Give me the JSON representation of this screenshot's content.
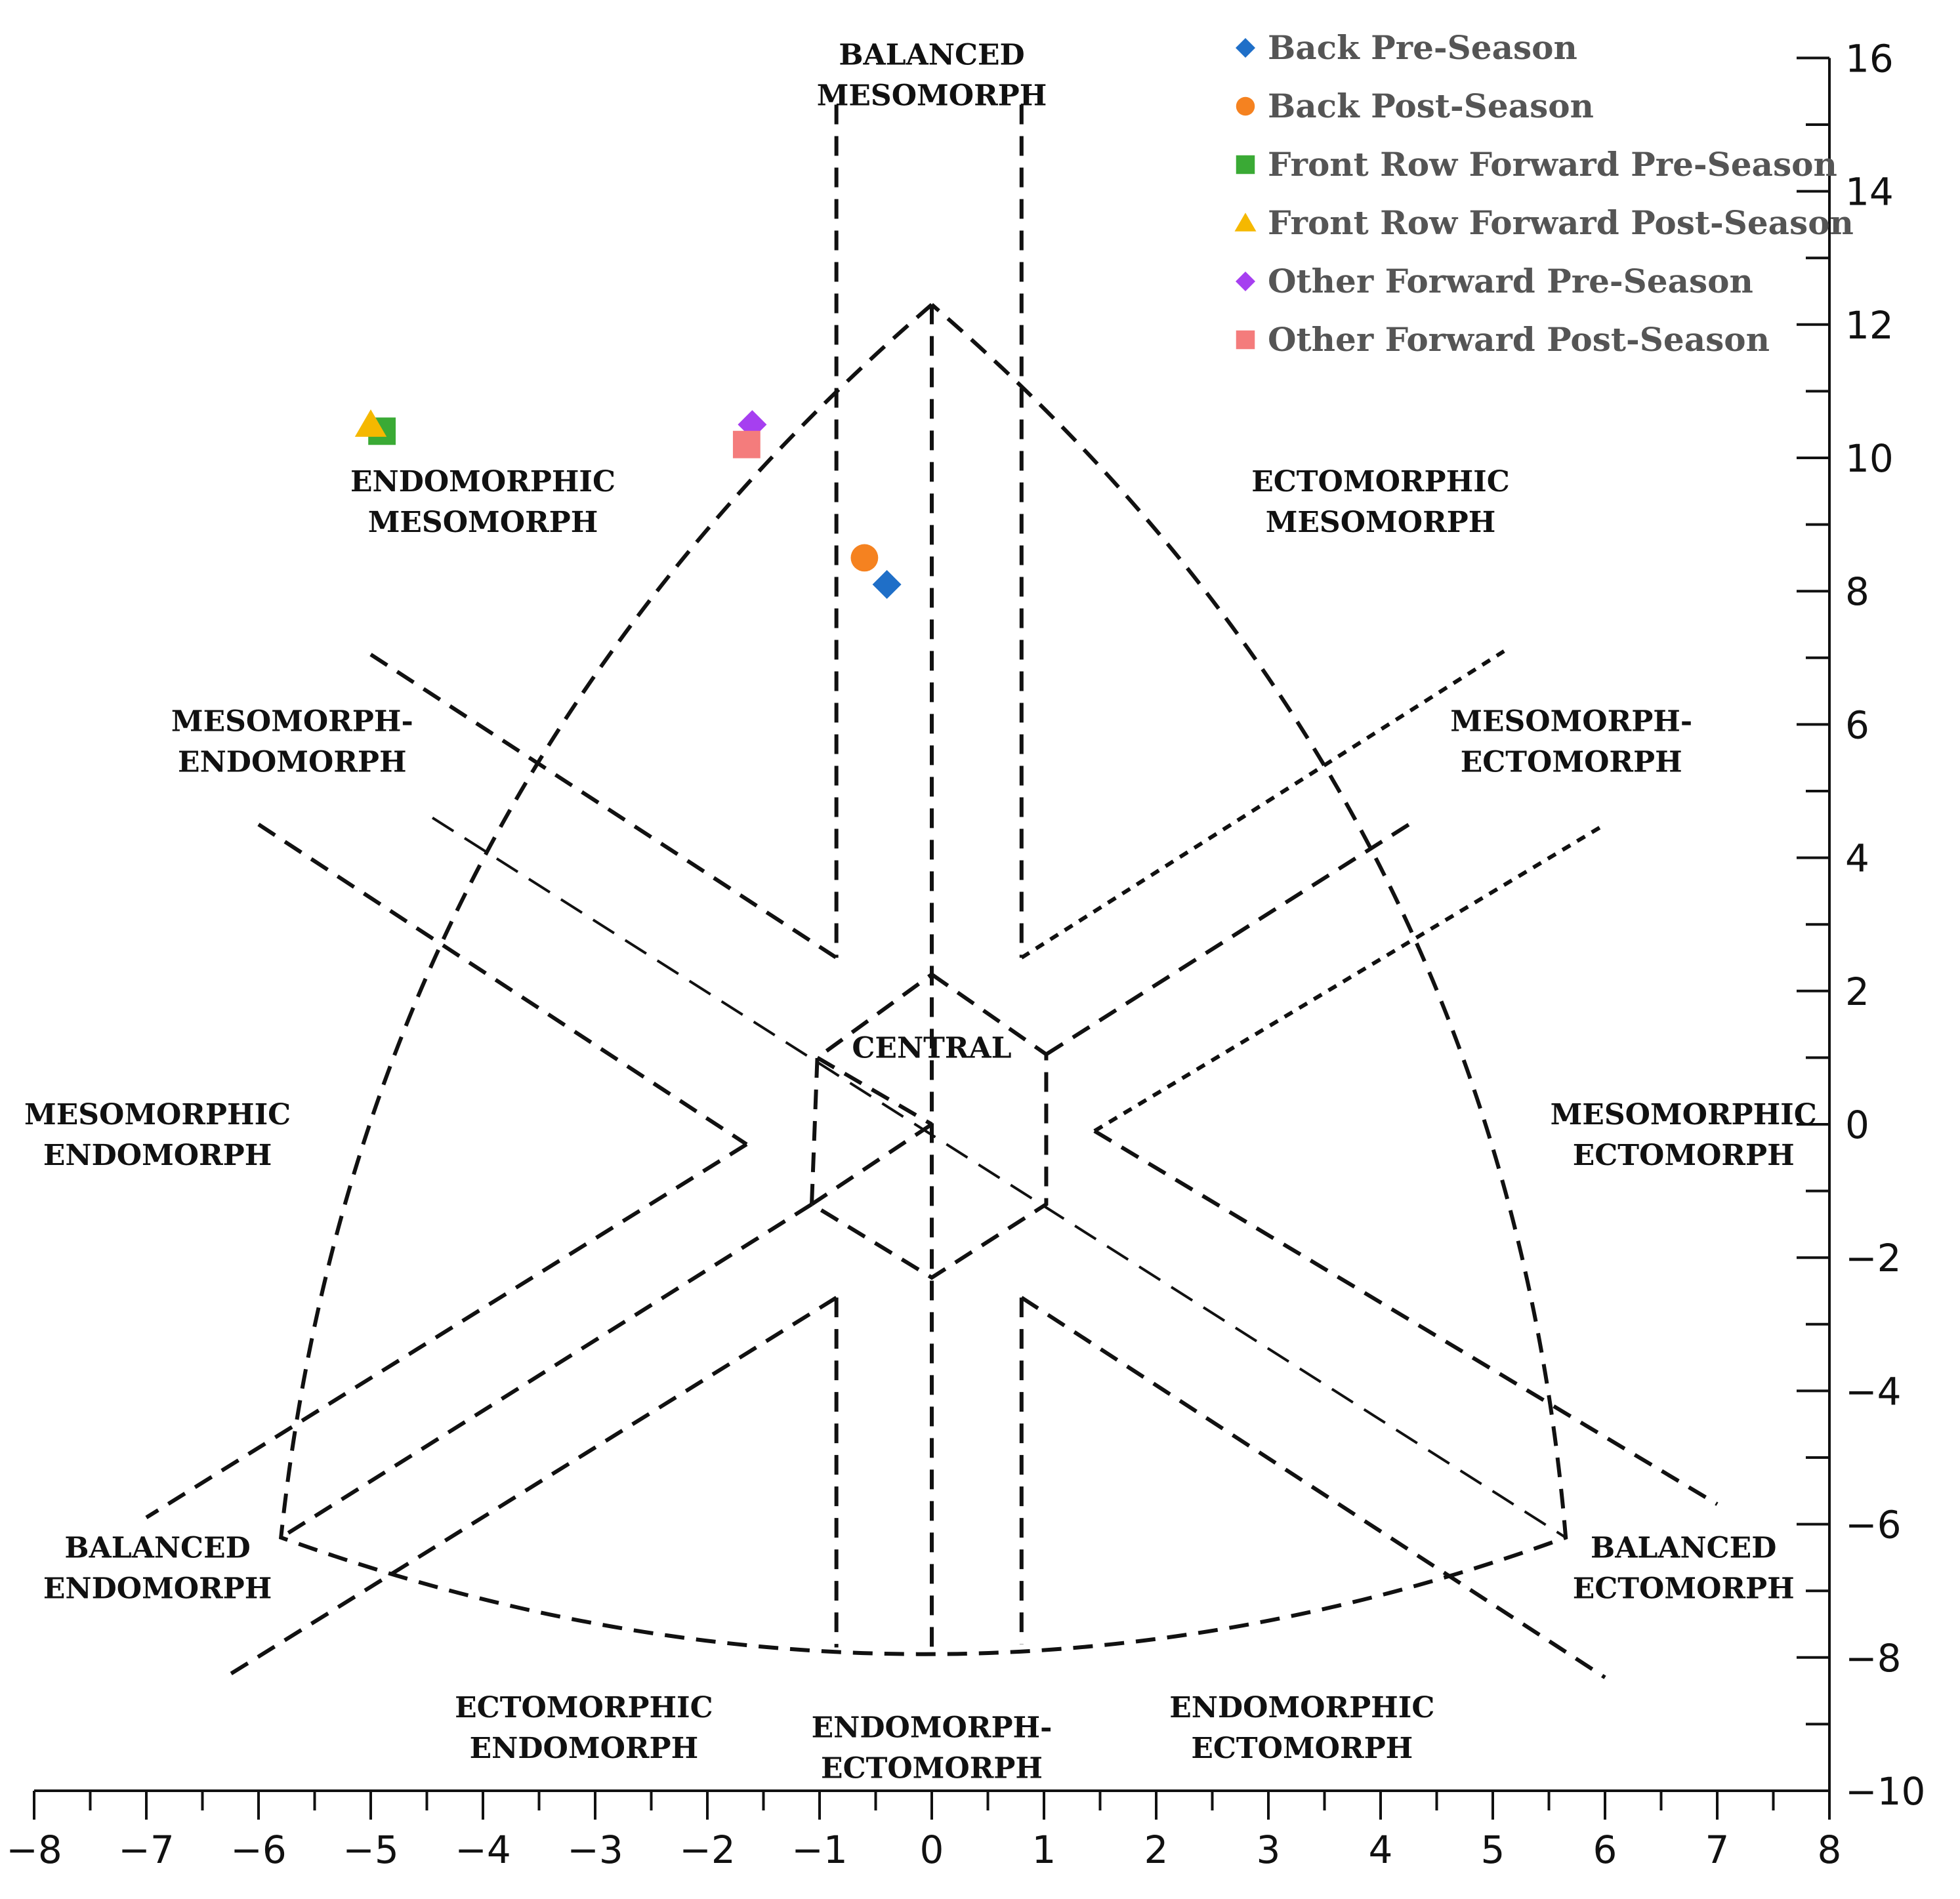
{
  "chart_data": {
    "type": "scatter",
    "title": "",
    "xlabel": "",
    "ylabel": "",
    "xlim": [
      -8,
      8
    ],
    "ylim": [
      -10,
      16
    ],
    "x_ticks": [
      -8,
      -7,
      -6,
      -5,
      -4,
      -3,
      -2,
      -1,
      0,
      1,
      2,
      3,
      4,
      5,
      6,
      7,
      8
    ],
    "y_ticks": [
      -10,
      -8,
      -6,
      -4,
      -2,
      0,
      2,
      4,
      6,
      8,
      10,
      12,
      14,
      16
    ],
    "x_tick_labels": [
      "−8",
      "−7",
      "−6",
      "−5",
      "−4",
      "−3",
      "−2",
      "−1",
      "0",
      "1",
      "2",
      "3",
      "4",
      "5",
      "6",
      "7",
      "8"
    ],
    "y_tick_labels": [
      "−10",
      "−8",
      "−6",
      "−4",
      "−2",
      "0",
      "2",
      "4",
      "6",
      "8",
      "10",
      "12",
      "14",
      "16"
    ],
    "grid": false,
    "legend_position": "top-right",
    "series": [
      {
        "name": "Back Pre-Season",
        "marker": "diamond",
        "color": "#1f6fc8",
        "x": [
          -0.4
        ],
        "y": [
          8.1
        ]
      },
      {
        "name": "Back Post-Season",
        "marker": "circle",
        "color": "#f58220",
        "x": [
          -0.6
        ],
        "y": [
          8.5
        ]
      },
      {
        "name": "Front Row Forward Pre-Season",
        "marker": "square",
        "color": "#3aaa35",
        "x": [
          -4.9
        ],
        "y": [
          10.4
        ]
      },
      {
        "name": "Front Row Forward Post-Season",
        "marker": "triangle",
        "color": "#f5b800",
        "x": [
          -5.0
        ],
        "y": [
          10.5
        ]
      },
      {
        "name": "Other Forward Pre-Season",
        "marker": "diamond",
        "color": "#a63ff0",
        "x": [
          -1.6
        ],
        "y": [
          10.5
        ]
      },
      {
        "name": "Other Forward Post-Season",
        "marker": "square",
        "color": "#f47c7c",
        "x": [
          -1.65
        ],
        "y": [
          10.2
        ]
      }
    ],
    "zone_labels": [
      {
        "lines": [
          "BALANCED",
          "MESOMORPH"
        ],
        "x": 0,
        "y": 15.9
      },
      {
        "lines": [
          "ENDOMORPHIC",
          "MESOMORPH"
        ],
        "x": -4,
        "y": 9.5
      },
      {
        "lines": [
          "ECTOMORPHIC",
          "MESOMORPH"
        ],
        "x": 4,
        "y": 9.5
      },
      {
        "lines": [
          "MESOMORPH-",
          "ENDOMORPH"
        ],
        "x": -5.7,
        "y": 5.9
      },
      {
        "lines": [
          "MESOMORPH-",
          "ECTOMORPH"
        ],
        "x": 5.7,
        "y": 5.9
      },
      {
        "lines": [
          "CENTRAL"
        ],
        "x": 0,
        "y": 1.0
      },
      {
        "lines": [
          "MESOMORPHIC",
          "ENDOMORPH"
        ],
        "x": -6.9,
        "y": 0.0
      },
      {
        "lines": [
          "MESOMORPHIC",
          "ECTOMORPH"
        ],
        "x": 6.7,
        "y": 0.0
      },
      {
        "lines": [
          "BALANCED",
          "ENDOMORPH"
        ],
        "x": -6.9,
        "y": -6.5
      },
      {
        "lines": [
          "BALANCED",
          "ECTOMORPH"
        ],
        "x": 6.7,
        "y": -6.5
      },
      {
        "lines": [
          "ECTOMORPHIC",
          "ENDOMORPH"
        ],
        "x": -3.1,
        "y": -8.9
      },
      {
        "lines": [
          "ENDOMORPH-",
          "ECTOMORPH"
        ],
        "x": 0,
        "y": -9.2
      },
      {
        "lines": [
          "ENDOMORPHIC",
          "ECTOMORPH"
        ],
        "x": 3.3,
        "y": -8.9
      }
    ],
    "boundary_vertices": [
      {
        "name": "top",
        "x": 0,
        "y": 12.3
      },
      {
        "name": "left",
        "x": -5.8,
        "y": -6.2
      },
      {
        "name": "right",
        "x": 5.65,
        "y": -6.2
      },
      {
        "name": "bottom",
        "x": 0,
        "y": -7.9
      }
    ]
  }
}
